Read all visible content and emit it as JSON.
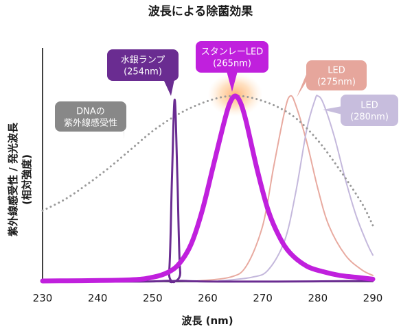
{
  "chart_data": {
    "type": "line",
    "title": "波長による除菌効果",
    "xlabel": "波長 (nm)",
    "ylabel": "紫外線感受性 / 発光波長",
    "ylabel_sub": "(相対強度)",
    "xlim": [
      230,
      290
    ],
    "ylim": [
      0,
      1
    ],
    "x_ticks": [
      230,
      240,
      250,
      260,
      270,
      280,
      290
    ],
    "grid": false,
    "legend": "callouts",
    "series": [
      {
        "name": "DNAの紫外線感受性",
        "style": "dotted",
        "color": "#9a9a9a",
        "x": [
          230,
          234,
          238,
          242,
          246,
          250,
          254,
          258,
          262,
          265,
          268,
          272,
          276,
          280,
          284,
          288,
          290
        ],
        "y": [
          0.38,
          0.44,
          0.52,
          0.61,
          0.71,
          0.81,
          0.89,
          0.95,
          0.99,
          1.0,
          0.99,
          0.95,
          0.88,
          0.76,
          0.6,
          0.42,
          0.3
        ]
      },
      {
        "name": "水銀ランプ(254nm)",
        "style": "solid",
        "color": "#6a2c91",
        "x": [
          230,
          252,
          253,
          253.5,
          254,
          254.5,
          255,
          256,
          290
        ],
        "y": [
          0,
          0,
          0.05,
          0.55,
          0.98,
          0.55,
          0.05,
          0,
          0
        ]
      },
      {
        "name": "スタンレーLED(265nm)",
        "style": "solid-thick",
        "color": "#c020dd",
        "x": [
          230,
          245,
          250,
          253,
          255,
          257,
          259,
          261,
          263,
          264,
          265,
          266,
          267,
          269,
          271,
          273,
          275,
          278,
          281,
          284,
          287,
          290
        ],
        "y": [
          0,
          0.005,
          0.02,
          0.05,
          0.1,
          0.2,
          0.38,
          0.62,
          0.86,
          0.96,
          1.0,
          0.96,
          0.86,
          0.6,
          0.38,
          0.24,
          0.15,
          0.08,
          0.05,
          0.03,
          0.02,
          0.01
        ]
      },
      {
        "name": "LED(275nm)",
        "style": "solid-thin",
        "color": "#e8aaa0",
        "x": [
          258,
          264,
          267,
          270,
          272,
          274,
          275,
          276,
          278,
          280,
          282,
          285,
          288,
          290
        ],
        "y": [
          0,
          0.02,
          0.08,
          0.3,
          0.62,
          0.92,
          1.0,
          0.95,
          0.75,
          0.5,
          0.3,
          0.14,
          0.06,
          0.03
        ]
      },
      {
        "name": "LED(280nm)",
        "style": "solid-thin",
        "color": "#c4b8dc",
        "x": [
          262,
          268,
          271,
          274,
          276,
          278,
          279.5,
          280,
          281,
          283,
          285,
          287,
          289,
          290
        ],
        "y": [
          0,
          0.02,
          0.06,
          0.22,
          0.48,
          0.82,
          0.98,
          1.0,
          0.96,
          0.78,
          0.55,
          0.35,
          0.2,
          0.14
        ]
      }
    ],
    "callouts": [
      {
        "lines": [
          "DNAの",
          "紫外線感受性"
        ],
        "color": "#888888",
        "series": 0
      },
      {
        "lines": [
          "水銀ランプ",
          "(254nm)"
        ],
        "color": "#6a2c91",
        "series": 1
      },
      {
        "lines": [
          "スタンレーLED",
          "(265nm)"
        ],
        "color": "#c020dd",
        "series": 2
      },
      {
        "lines": [
          "LED",
          "(275nm)"
        ],
        "color": "#e6a69c",
        "series": 3
      },
      {
        "lines": [
          "LED",
          "(280nm)"
        ],
        "color": "#c7bddd",
        "series": 4
      }
    ]
  }
}
